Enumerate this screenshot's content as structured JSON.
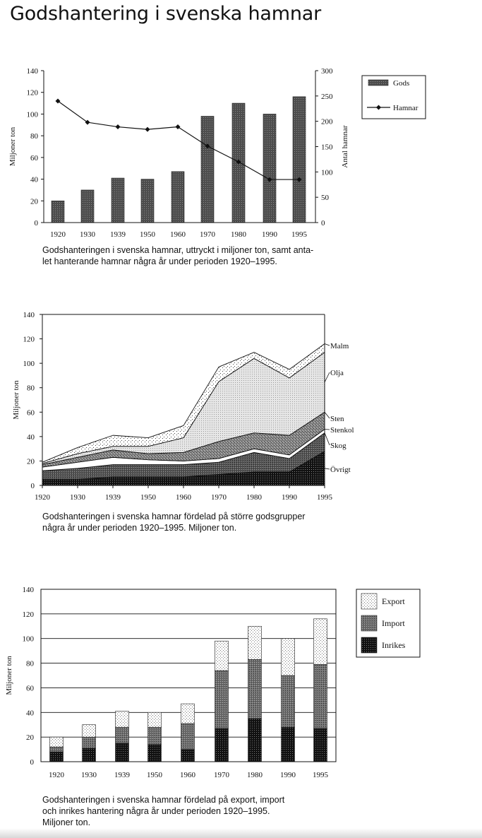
{
  "page_title": "Godshantering i svenska hamnar",
  "figures": [
    {
      "caption_lines": [
        "Godshanteringen i svenska hamnar, uttryckt i miljoner ton, samt anta-",
        "let hanterande hamnar några år under perioden 1920–1995."
      ]
    },
    {
      "caption_lines": [
        "Godshanteringen i svenska hamnar fördelad på större godsgrupper",
        "några år under perioden 1920–1995. Miljoner ton."
      ]
    },
    {
      "caption_lines": [
        "Godshanteringen i svenska hamnar fördelad på export, import",
        "och inrikes hantering några år under perioden 1920–1995.",
        "Miljoner ton."
      ]
    }
  ],
  "chart_data": [
    {
      "type": "bar",
      "categories": [
        "1920",
        "1930",
        "1939",
        "1950",
        "1960",
        "1970",
        "1980",
        "1990",
        "1995"
      ],
      "series": [
        {
          "name": "Gods",
          "type": "bar",
          "axis": "left",
          "values": [
            20,
            30,
            41,
            40,
            47,
            98,
            110,
            100,
            116
          ]
        },
        {
          "name": "Hamnar",
          "type": "line",
          "axis": "right",
          "values": [
            240,
            198,
            189,
            184,
            189,
            151,
            120,
            85,
            85
          ]
        }
      ],
      "ylabel": "Miljoner ton",
      "ylabel_right": "Antal hamnar",
      "ylim": [
        0,
        140
      ],
      "yticks": [
        "0",
        "20",
        "40",
        "60",
        "80",
        "100",
        "120",
        "140"
      ],
      "ylim_right": [
        0,
        300
      ],
      "yticks_right": [
        "0",
        "50",
        "100",
        "150",
        "200",
        "250",
        "300"
      ],
      "legend_position": "top-right",
      "colors": {
        "bar": "#4a4a4a",
        "line": "#111111"
      }
    },
    {
      "type": "area",
      "x": [
        "1920",
        "1930",
        "1939",
        "1950",
        "1960",
        "1970",
        "1980",
        "1990",
        "1995"
      ],
      "series": [
        {
          "name": "Övrigt",
          "values": [
            5,
            5,
            7,
            7,
            7,
            9,
            11,
            11,
            28
          ]
        },
        {
          "name": "Skog",
          "values": [
            7,
            9,
            10,
            10,
            10,
            10,
            16,
            11,
            15
          ]
        },
        {
          "name": "Stenkol",
          "values": [
            3,
            5,
            6,
            4,
            3,
            3,
            3,
            3,
            3
          ]
        },
        {
          "name": "Sten",
          "values": [
            2,
            4,
            6,
            5,
            7,
            14,
            13,
            16,
            14
          ]
        },
        {
          "name": "Olja",
          "values": [
            1,
            3,
            3,
            6,
            12,
            49,
            61,
            47,
            49
          ]
        },
        {
          "name": "Malm",
          "values": [
            1,
            5,
            9,
            7,
            10,
            12,
            5,
            7,
            7
          ]
        }
      ],
      "ylabel": "Miljoner ton",
      "ylim": [
        0,
        140
      ],
      "yticks": [
        "0",
        "20",
        "40",
        "60",
        "80",
        "100",
        "120",
        "140"
      ]
    },
    {
      "type": "bar",
      "stacked": true,
      "categories": [
        "1920",
        "1930",
        "1939",
        "1950",
        "1960",
        "1970",
        "1980",
        "1990",
        "1995"
      ],
      "series": [
        {
          "name": "Inrikes",
          "values": [
            8,
            11,
            15,
            14,
            10,
            27,
            35,
            28,
            27
          ]
        },
        {
          "name": "Import",
          "values": [
            4,
            9,
            13,
            14,
            21,
            47,
            48,
            42,
            52
          ]
        },
        {
          "name": "Export",
          "values": [
            8,
            10,
            13,
            12,
            16,
            24,
            27,
            30,
            37
          ]
        }
      ],
      "ylabel": "Miljoner ton",
      "ylim": [
        0,
        140
      ],
      "yticks": [
        "0",
        "20",
        "40",
        "60",
        "80",
        "100",
        "120",
        "140"
      ],
      "grid": true,
      "legend_position": "right"
    }
  ]
}
